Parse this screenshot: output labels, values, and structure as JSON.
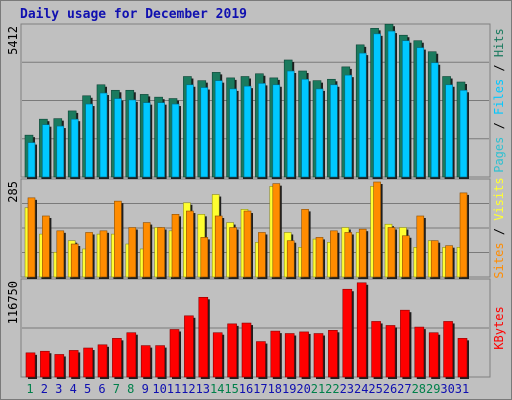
{
  "title": "Daily usage for December 2019",
  "colors": {
    "hits": "#1a7a5e",
    "files": "#00c8ff",
    "pages": "#30c0d0",
    "visits": "#ffff30",
    "sites": "#ff8c00",
    "kbytes": "#ff0000",
    "weekend_day": "#00804a",
    "weekday_day": "#1010b0",
    "panel_bg": "#c0c0c0"
  },
  "chart_data": [
    {
      "type": "bar",
      "ytick": "5412",
      "ylim": [
        0,
        5412
      ],
      "categories": [
        "1",
        "2",
        "3",
        "4",
        "5",
        "6",
        "7",
        "8",
        "9",
        "10",
        "11",
        "12",
        "13",
        "14",
        "15",
        "16",
        "17",
        "18",
        "19",
        "20",
        "21",
        "22",
        "23",
        "24",
        "25",
        "26",
        "27",
        "28",
        "29",
        "30",
        "31"
      ],
      "series": [
        {
          "name": "Hits",
          "values": [
            1520,
            2100,
            2120,
            2400,
            2950,
            3350,
            3150,
            3150,
            3000,
            2900,
            2850,
            3650,
            3500,
            3800,
            3600,
            3650,
            3750,
            3600,
            4250,
            3850,
            3500,
            3550,
            4000,
            4800,
            5400,
            5550,
            5150,
            4950,
            4550,
            3650,
            3450
          ]
        },
        {
          "name": "Files",
          "values": [
            1250,
            1900,
            1850,
            2100,
            2650,
            3050,
            2850,
            2800,
            2700,
            2700,
            2650,
            3350,
            3250,
            3500,
            3200,
            3300,
            3400,
            3350,
            3850,
            3550,
            3200,
            3350,
            3700,
            4500,
            5200,
            5300,
            4950,
            4700,
            4150,
            3350,
            3150
          ]
        },
        {
          "name": "Pages",
          "values": [
            1350,
            1950,
            1900,
            2150,
            2700,
            3100,
            2900,
            2850,
            2750,
            2750,
            2700,
            3400,
            3300,
            3550,
            3250,
            3350,
            3450,
            3400,
            3900,
            3600,
            3250,
            3400,
            3750,
            4550,
            5250,
            5350,
            5000,
            4750,
            4200,
            3400,
            3200
          ]
        }
      ],
      "legend": [
        "Pages",
        "Files",
        "Hits"
      ],
      "legend_separator": "/"
    },
    {
      "type": "bar",
      "ytick": "285",
      "ylim": [
        0,
        285
      ],
      "categories": [
        "1",
        "2",
        "3",
        "4",
        "5",
        "6",
        "7",
        "8",
        "9",
        "10",
        "11",
        "12",
        "13",
        "14",
        "15",
        "16",
        "17",
        "18",
        "19",
        "20",
        "21",
        "22",
        "23",
        "24",
        "25",
        "26",
        "27",
        "28",
        "29",
        "30",
        "31"
      ],
      "series": [
        {
          "name": "Visits",
          "values": [
            210,
            130,
            75,
            110,
            85,
            130,
            130,
            100,
            85,
            150,
            140,
            225,
            190,
            250,
            165,
            205,
            105,
            275,
            135,
            90,
            115,
            105,
            150,
            135,
            275,
            160,
            150,
            90,
            110,
            90,
            90
          ]
        },
        {
          "name": "Sites",
          "values": [
            240,
            185,
            140,
            100,
            135,
            140,
            230,
            150,
            165,
            150,
            190,
            200,
            120,
            185,
            150,
            200,
            135,
            283,
            110,
            205,
            120,
            140,
            135,
            145,
            288,
            150,
            125,
            185,
            110,
            95,
            255
          ]
        }
      ],
      "legend": [
        "Sites",
        "Visits"
      ],
      "legend_separator": "/"
    },
    {
      "type": "bar",
      "ytick": "116750",
      "ylim": [
        0,
        116750
      ],
      "categories": [
        "1",
        "2",
        "3",
        "4",
        "5",
        "6",
        "7",
        "8",
        "9",
        "10",
        "11",
        "12",
        "13",
        "14",
        "15",
        "16",
        "17",
        "18",
        "19",
        "20",
        "21",
        "22",
        "23",
        "24",
        "25",
        "26",
        "27",
        "28",
        "29",
        "30",
        "31"
      ],
      "series": [
        {
          "name": "KBytes",
          "values": [
            30000,
            32000,
            28000,
            33000,
            36000,
            40000,
            48000,
            55000,
            39000,
            39000,
            59000,
            76000,
            99000,
            55000,
            66000,
            67000,
            44000,
            57000,
            54000,
            56000,
            54000,
            58000,
            109000,
            117000,
            69000,
            64000,
            83000,
            62000,
            55000,
            69000,
            48000
          ]
        }
      ],
      "legend": [
        "KBytes"
      ],
      "legend_separator": ""
    }
  ],
  "days": [
    {
      "label": "1",
      "weekend": true
    },
    {
      "label": "2",
      "weekend": false
    },
    {
      "label": "3",
      "weekend": false
    },
    {
      "label": "4",
      "weekend": false
    },
    {
      "label": "5",
      "weekend": false
    },
    {
      "label": "6",
      "weekend": false
    },
    {
      "label": "7",
      "weekend": true
    },
    {
      "label": "8",
      "weekend": true
    },
    {
      "label": "9",
      "weekend": false
    },
    {
      "label": "10",
      "weekend": false
    },
    {
      "label": "11",
      "weekend": false
    },
    {
      "label": "12",
      "weekend": false
    },
    {
      "label": "13",
      "weekend": false
    },
    {
      "label": "14",
      "weekend": true
    },
    {
      "label": "15",
      "weekend": true
    },
    {
      "label": "16",
      "weekend": false
    },
    {
      "label": "17",
      "weekend": false
    },
    {
      "label": "18",
      "weekend": false
    },
    {
      "label": "19",
      "weekend": false
    },
    {
      "label": "20",
      "weekend": false
    },
    {
      "label": "21",
      "weekend": true
    },
    {
      "label": "22",
      "weekend": true
    },
    {
      "label": "23",
      "weekend": false
    },
    {
      "label": "24",
      "weekend": false
    },
    {
      "label": "25",
      "weekend": false
    },
    {
      "label": "26",
      "weekend": false
    },
    {
      "label": "27",
      "weekend": false
    },
    {
      "label": "28",
      "weekend": true
    },
    {
      "label": "29",
      "weekend": true
    },
    {
      "label": "30",
      "weekend": false
    },
    {
      "label": "31",
      "weekend": false
    }
  ]
}
